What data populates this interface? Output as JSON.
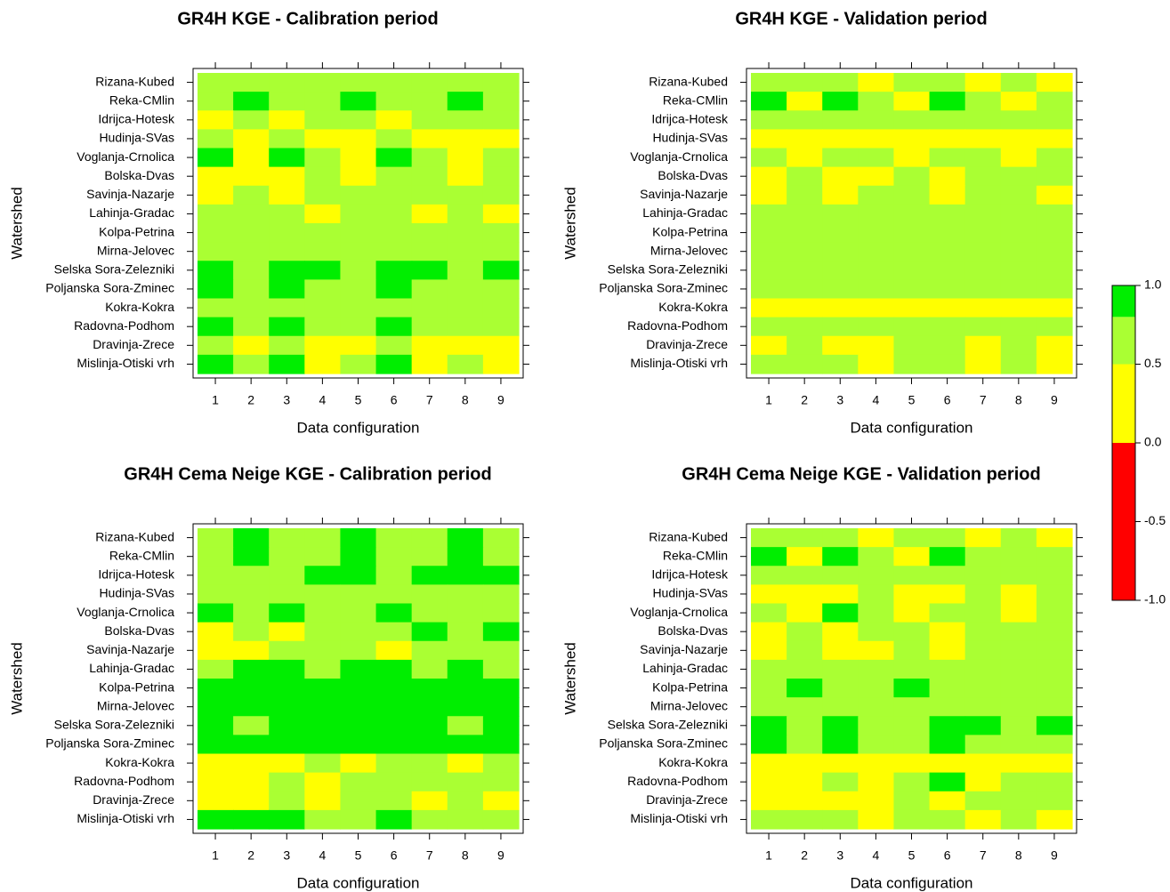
{
  "chart_data": [
    {
      "type": "heatmap",
      "title": "GR4H KGE - Calibration period",
      "xlabel": "Data configuration",
      "ylabel": "Watershed",
      "x": [
        "1",
        "2",
        "3",
        "4",
        "5",
        "6",
        "7",
        "8",
        "9"
      ],
      "y": [
        "Rizana-Kubed",
        "Reka-CMlin",
        "Idrijca-Hotesk",
        "Hudinja-SVas",
        "Voglanja-Crnolica",
        "Bolska-Dvas",
        "Savinja-Nazarje",
        "Lahinja-Gradac",
        "Kolpa-Petrina",
        "Mirna-Jelovec",
        "Selska Sora-Zelezniki",
        "Poljanska Sora-Zminec",
        "Kokra-Kokra",
        "Radovna-Podhom",
        "Dravinja-Zrece",
        "Mislinja-Otiski vrh"
      ],
      "values": [
        [
          0.75,
          0.75,
          0.75,
          0.75,
          0.75,
          0.75,
          0.75,
          0.75,
          0.75
        ],
        [
          0.75,
          0.9,
          0.75,
          0.75,
          0.9,
          0.75,
          0.75,
          0.9,
          0.75
        ],
        [
          0.25,
          0.75,
          0.25,
          0.75,
          0.75,
          0.25,
          0.75,
          0.75,
          0.75
        ],
        [
          0.75,
          0.25,
          0.75,
          0.25,
          0.25,
          0.75,
          0.25,
          0.25,
          0.25
        ],
        [
          0.9,
          0.25,
          0.9,
          0.75,
          0.25,
          0.9,
          0.75,
          0.25,
          0.75
        ],
        [
          0.25,
          0.25,
          0.25,
          0.75,
          0.25,
          0.75,
          0.75,
          0.25,
          0.75
        ],
        [
          0.25,
          0.75,
          0.25,
          0.75,
          0.75,
          0.75,
          0.75,
          0.75,
          0.75
        ],
        [
          0.75,
          0.75,
          0.75,
          0.25,
          0.75,
          0.75,
          0.25,
          0.75,
          0.25
        ],
        [
          0.75,
          0.75,
          0.75,
          0.75,
          0.75,
          0.75,
          0.75,
          0.75,
          0.75
        ],
        [
          0.75,
          0.75,
          0.75,
          0.75,
          0.75,
          0.75,
          0.75,
          0.75,
          0.75
        ],
        [
          0.9,
          0.75,
          0.9,
          0.9,
          0.75,
          0.9,
          0.9,
          0.75,
          0.9
        ],
        [
          0.9,
          0.75,
          0.9,
          0.75,
          0.75,
          0.9,
          0.75,
          0.75,
          0.75
        ],
        [
          0.75,
          0.75,
          0.75,
          0.75,
          0.75,
          0.75,
          0.75,
          0.75,
          0.75
        ],
        [
          0.9,
          0.75,
          0.9,
          0.75,
          0.75,
          0.9,
          0.75,
          0.75,
          0.75
        ],
        [
          0.75,
          0.25,
          0.75,
          0.25,
          0.25,
          0.75,
          0.25,
          0.25,
          0.25
        ],
        [
          0.9,
          0.75,
          0.9,
          0.25,
          0.75,
          0.9,
          0.25,
          0.75,
          0.25
        ]
      ]
    },
    {
      "type": "heatmap",
      "title": "GR4H KGE - Validation period",
      "xlabel": "Data configuration",
      "ylabel": "Watershed",
      "x": [
        "1",
        "2",
        "3",
        "4",
        "5",
        "6",
        "7",
        "8",
        "9"
      ],
      "y": [
        "Rizana-Kubed",
        "Reka-CMlin",
        "Idrijca-Hotesk",
        "Hudinja-SVas",
        "Voglanja-Crnolica",
        "Bolska-Dvas",
        "Savinja-Nazarje",
        "Lahinja-Gradac",
        "Kolpa-Petrina",
        "Mirna-Jelovec",
        "Selska Sora-Zelezniki",
        "Poljanska Sora-Zminec",
        "Kokra-Kokra",
        "Radovna-Podhom",
        "Dravinja-Zrece",
        "Mislinja-Otiski vrh"
      ],
      "values": [
        [
          0.75,
          0.75,
          0.75,
          0.25,
          0.75,
          0.75,
          0.25,
          0.75,
          0.25
        ],
        [
          0.9,
          0.25,
          0.9,
          0.75,
          0.25,
          0.9,
          0.75,
          0.25,
          0.75
        ],
        [
          0.75,
          0.75,
          0.75,
          0.75,
          0.75,
          0.75,
          0.75,
          0.75,
          0.75
        ],
        [
          0.25,
          0.25,
          0.25,
          0.25,
          0.25,
          0.25,
          0.25,
          0.25,
          0.25
        ],
        [
          0.75,
          0.25,
          0.75,
          0.75,
          0.25,
          0.75,
          0.75,
          0.25,
          0.75
        ],
        [
          0.25,
          0.75,
          0.25,
          0.25,
          0.75,
          0.25,
          0.75,
          0.75,
          0.75
        ],
        [
          0.25,
          0.75,
          0.25,
          0.75,
          0.75,
          0.25,
          0.75,
          0.75,
          0.25
        ],
        [
          0.75,
          0.75,
          0.75,
          0.75,
          0.75,
          0.75,
          0.75,
          0.75,
          0.75
        ],
        [
          0.75,
          0.75,
          0.75,
          0.75,
          0.75,
          0.75,
          0.75,
          0.75,
          0.75
        ],
        [
          0.75,
          0.75,
          0.75,
          0.75,
          0.75,
          0.75,
          0.75,
          0.75,
          0.75
        ],
        [
          0.75,
          0.75,
          0.75,
          0.75,
          0.75,
          0.75,
          0.75,
          0.75,
          0.75
        ],
        [
          0.75,
          0.75,
          0.75,
          0.75,
          0.75,
          0.75,
          0.75,
          0.75,
          0.75
        ],
        [
          0.25,
          0.25,
          0.25,
          0.25,
          0.25,
          0.25,
          0.25,
          0.25,
          0.25
        ],
        [
          0.75,
          0.75,
          0.75,
          0.75,
          0.75,
          0.75,
          0.75,
          0.75,
          0.75
        ],
        [
          0.25,
          0.75,
          0.25,
          0.25,
          0.75,
          0.75,
          0.25,
          0.75,
          0.25
        ],
        [
          0.75,
          0.75,
          0.75,
          0.25,
          0.75,
          0.75,
          0.25,
          0.75,
          0.25
        ]
      ]
    },
    {
      "type": "heatmap",
      "title": "GR4H Cema Neige KGE - Calibration period",
      "xlabel": "Data configuration",
      "ylabel": "Watershed",
      "x": [
        "1",
        "2",
        "3",
        "4",
        "5",
        "6",
        "7",
        "8",
        "9"
      ],
      "y": [
        "Rizana-Kubed",
        "Reka-CMlin",
        "Idrijca-Hotesk",
        "Hudinja-SVas",
        "Voglanja-Crnolica",
        "Bolska-Dvas",
        "Savinja-Nazarje",
        "Lahinja-Gradac",
        "Kolpa-Petrina",
        "Mirna-Jelovec",
        "Selska Sora-Zelezniki",
        "Poljanska Sora-Zminec",
        "Kokra-Kokra",
        "Radovna-Podhom",
        "Dravinja-Zrece",
        "Mislinja-Otiski vrh"
      ],
      "values": [
        [
          0.75,
          0.9,
          0.75,
          0.75,
          0.9,
          0.75,
          0.75,
          0.9,
          0.75
        ],
        [
          0.75,
          0.9,
          0.75,
          0.75,
          0.9,
          0.75,
          0.75,
          0.9,
          0.75
        ],
        [
          0.75,
          0.75,
          0.75,
          0.9,
          0.9,
          0.75,
          0.9,
          0.9,
          0.9
        ],
        [
          0.75,
          0.75,
          0.75,
          0.75,
          0.75,
          0.75,
          0.75,
          0.75,
          0.75
        ],
        [
          0.9,
          0.75,
          0.9,
          0.75,
          0.75,
          0.9,
          0.75,
          0.75,
          0.75
        ],
        [
          0.25,
          0.75,
          0.25,
          0.75,
          0.75,
          0.75,
          0.9,
          0.75,
          0.9
        ],
        [
          0.25,
          0.25,
          0.75,
          0.75,
          0.75,
          0.25,
          0.75,
          0.75,
          0.75
        ],
        [
          0.75,
          0.9,
          0.9,
          0.75,
          0.9,
          0.9,
          0.75,
          0.9,
          0.75
        ],
        [
          0.9,
          0.9,
          0.9,
          0.9,
          0.9,
          0.9,
          0.9,
          0.9,
          0.9
        ],
        [
          0.9,
          0.9,
          0.9,
          0.9,
          0.9,
          0.9,
          0.9,
          0.9,
          0.9
        ],
        [
          0.9,
          0.75,
          0.9,
          0.9,
          0.9,
          0.9,
          0.9,
          0.75,
          0.9
        ],
        [
          0.9,
          0.9,
          0.9,
          0.9,
          0.9,
          0.9,
          0.9,
          0.9,
          0.9
        ],
        [
          0.25,
          0.25,
          0.25,
          0.75,
          0.25,
          0.75,
          0.75,
          0.25,
          0.75
        ],
        [
          0.25,
          0.25,
          0.75,
          0.25,
          0.75,
          0.75,
          0.75,
          0.75,
          0.75
        ],
        [
          0.25,
          0.25,
          0.75,
          0.25,
          0.75,
          0.75,
          0.25,
          0.75,
          0.25
        ],
        [
          0.9,
          0.9,
          0.9,
          0.75,
          0.75,
          0.9,
          0.75,
          0.75,
          0.75
        ]
      ]
    },
    {
      "type": "heatmap",
      "title": "GR4H Cema Neige KGE - Validation period",
      "xlabel": "Data configuration",
      "ylabel": "Watershed",
      "x": [
        "1",
        "2",
        "3",
        "4",
        "5",
        "6",
        "7",
        "8",
        "9"
      ],
      "y": [
        "Rizana-Kubed",
        "Reka-CMlin",
        "Idrijca-Hotesk",
        "Hudinja-SVas",
        "Voglanja-Crnolica",
        "Bolska-Dvas",
        "Savinja-Nazarje",
        "Lahinja-Gradac",
        "Kolpa-Petrina",
        "Mirna-Jelovec",
        "Selska Sora-Zelezniki",
        "Poljanska Sora-Zminec",
        "Kokra-Kokra",
        "Radovna-Podhom",
        "Dravinja-Zrece",
        "Mislinja-Otiski vrh"
      ],
      "values": [
        [
          0.75,
          0.75,
          0.75,
          0.25,
          0.75,
          0.75,
          0.25,
          0.75,
          0.25
        ],
        [
          0.9,
          0.25,
          0.9,
          0.75,
          0.25,
          0.9,
          0.75,
          0.75,
          0.75
        ],
        [
          0.75,
          0.75,
          0.75,
          0.75,
          0.75,
          0.75,
          0.75,
          0.75,
          0.75
        ],
        [
          0.25,
          0.25,
          0.25,
          0.75,
          0.25,
          0.25,
          0.75,
          0.25,
          0.75
        ],
        [
          0.75,
          0.25,
          0.9,
          0.75,
          0.25,
          0.75,
          0.75,
          0.25,
          0.75
        ],
        [
          0.25,
          0.75,
          0.25,
          0.75,
          0.75,
          0.25,
          0.75,
          0.75,
          0.75
        ],
        [
          0.25,
          0.75,
          0.25,
          0.25,
          0.75,
          0.25,
          0.75,
          0.75,
          0.75
        ],
        [
          0.75,
          0.75,
          0.75,
          0.75,
          0.75,
          0.75,
          0.75,
          0.75,
          0.75
        ],
        [
          0.75,
          0.9,
          0.75,
          0.75,
          0.9,
          0.75,
          0.75,
          0.75,
          0.75
        ],
        [
          0.75,
          0.75,
          0.75,
          0.75,
          0.75,
          0.75,
          0.75,
          0.75,
          0.75
        ],
        [
          0.9,
          0.75,
          0.9,
          0.75,
          0.75,
          0.9,
          0.9,
          0.75,
          0.9
        ],
        [
          0.9,
          0.75,
          0.9,
          0.75,
          0.75,
          0.9,
          0.75,
          0.75,
          0.75
        ],
        [
          0.25,
          0.25,
          0.25,
          0.25,
          0.25,
          0.25,
          0.25,
          0.25,
          0.25
        ],
        [
          0.25,
          0.25,
          0.75,
          0.25,
          0.75,
          0.9,
          0.25,
          0.75,
          0.75
        ],
        [
          0.25,
          0.25,
          0.25,
          0.25,
          0.75,
          0.25,
          0.75,
          0.75,
          0.75
        ],
        [
          0.75,
          0.75,
          0.75,
          0.25,
          0.75,
          0.75,
          0.25,
          0.75,
          0.25
        ]
      ]
    }
  ],
  "colorbar": {
    "range": [
      -1.0,
      1.0
    ],
    "tick_values": [
      1.0,
      0.5,
      0.0,
      -0.5,
      -1.0
    ],
    "tick_labels": [
      "1.0",
      "0.5",
      "0.0",
      "-0.5",
      "-1.0"
    ],
    "bands": [
      {
        "from": 0.8,
        "to": 1.0,
        "color": "#00ee00"
      },
      {
        "from": 0.5,
        "to": 0.8,
        "color": "#aaff33"
      },
      {
        "from": 0.0,
        "to": 0.5,
        "color": "#ffff00"
      },
      {
        "from": -1.0,
        "to": 0.0,
        "color": "#ff0000"
      }
    ]
  }
}
